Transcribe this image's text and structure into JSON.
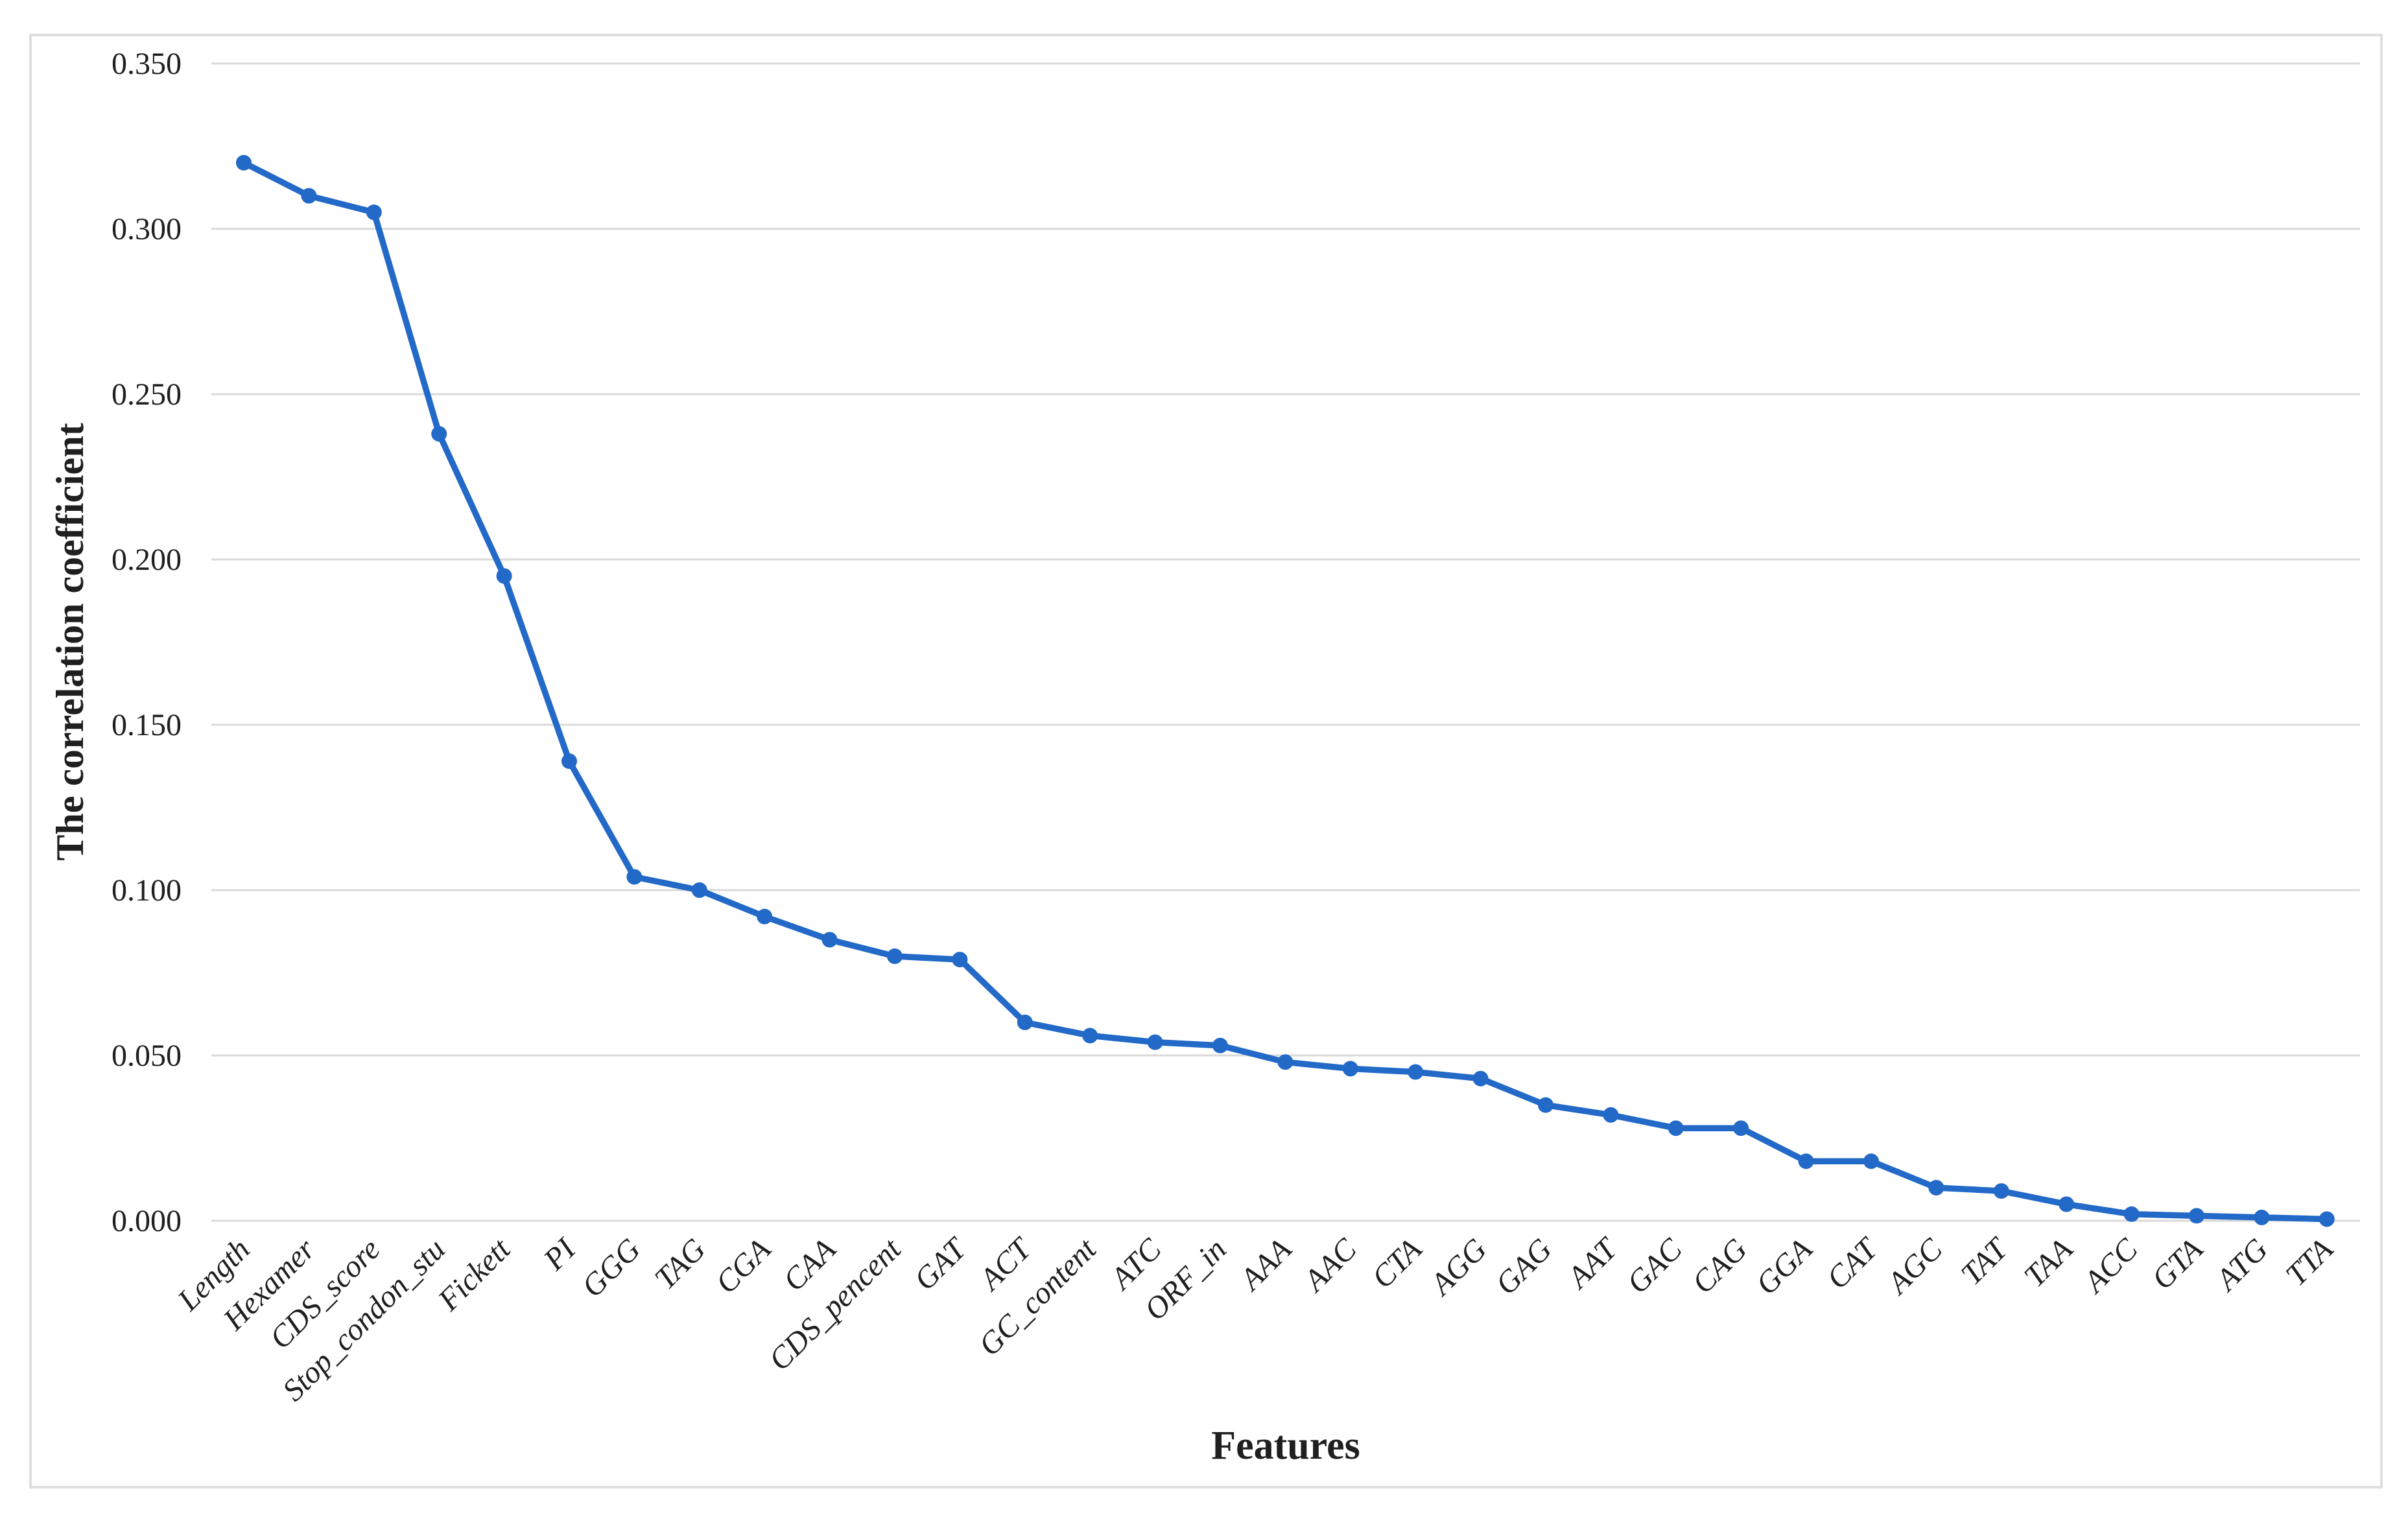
{
  "chart_data": {
    "type": "line",
    "title": "",
    "xlabel": "Features",
    "ylabel": "The correlation coefficient",
    "categories": [
      "Length",
      "Hexamer",
      "CDS_score",
      "Stop_condon_stu",
      "Fickett",
      "PI",
      "GGG",
      "TAG",
      "CGA",
      "CAA",
      "CDS_pencent",
      "GAT",
      "ACT",
      "GC_content",
      "ATC",
      "ORF_in",
      "AAA",
      "AAC",
      "CTA",
      "AGG",
      "GAG",
      "AAT",
      "GAC",
      "CAG",
      "GGA",
      "CAT",
      "AGC",
      "TAT",
      "TAA",
      "ACC",
      "GTA",
      "ATG",
      "TTA"
    ],
    "series": [
      {
        "name": "correlation coefficient",
        "values": [
          0.32,
          0.31,
          0.305,
          0.238,
          0.195,
          0.139,
          0.104,
          0.1,
          0.092,
          0.085,
          0.08,
          0.079,
          0.06,
          0.056,
          0.054,
          0.053,
          0.048,
          0.046,
          0.045,
          0.043,
          0.035,
          0.032,
          0.028,
          0.028,
          0.018,
          0.018,
          0.01,
          0.009,
          0.005,
          0.002,
          0.0015,
          0.001,
          0.0005
        ]
      }
    ],
    "y_ticks": [
      "0.000",
      "0.050",
      "0.100",
      "0.150",
      "0.200",
      "0.250",
      "0.300",
      "0.350"
    ],
    "ylim": [
      0,
      0.35
    ],
    "grid": true,
    "legend": false,
    "line_color": "#2269c8",
    "marker": "circle",
    "grid_color": "#d9d9d9",
    "text_color": "#1f1f1f",
    "frame_color": "#dedede"
  }
}
